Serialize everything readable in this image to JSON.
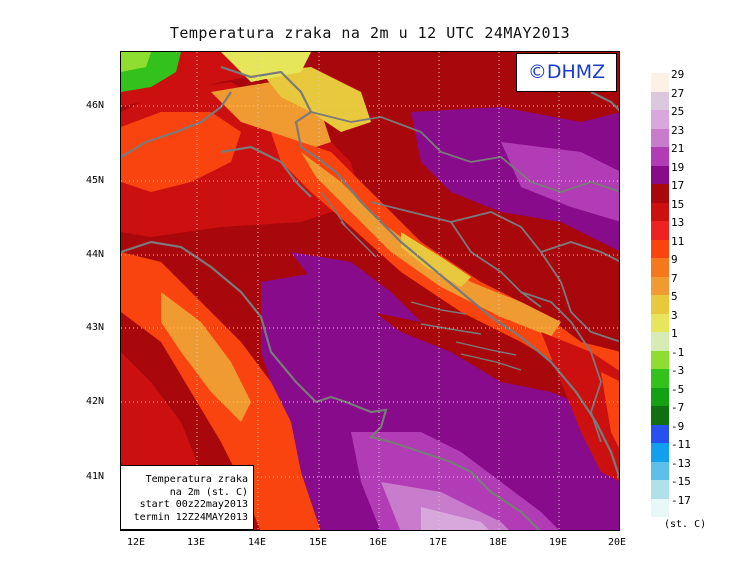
{
  "title": "Temperatura zraka na 2m u 12 UTC 24MAY2013",
  "logo": "©DHMZ",
  "infobox": {
    "line1": "Temperatura zraka",
    "line2": "na 2m (st. C)",
    "line3": "start 00z22may2013",
    "line4": "termin 12Z24MAY2013"
  },
  "lat_labels": [
    "46N",
    "45N",
    "44N",
    "43N",
    "42N",
    "41N"
  ],
  "lon_labels": [
    "12E",
    "13E",
    "14E",
    "15E",
    "16E",
    "17E",
    "18E",
    "19E",
    "20E"
  ],
  "legend": {
    "unit": "(st. C)",
    "entries": [
      {
        "label": "29",
        "color": "#fdf0e4"
      },
      {
        "label": "27",
        "color": "#dcc8de"
      },
      {
        "label": "25",
        "color": "#d8a8dc"
      },
      {
        "label": "23",
        "color": "#c77ccc"
      },
      {
        "label": "21",
        "color": "#b13cb5"
      },
      {
        "label": "19",
        "color": "#870b8a"
      },
      {
        "label": "17",
        "color": "#a8080c"
      },
      {
        "label": "15",
        "color": "#cc1010"
      },
      {
        "label": "13",
        "color": "#ee2222"
      },
      {
        "label": "11",
        "color": "#fa4410"
      },
      {
        "label": "9",
        "color": "#f6781c"
      },
      {
        "label": "7",
        "color": "#f09a32"
      },
      {
        "label": "5",
        "color": "#e8c83c"
      },
      {
        "label": "3",
        "color": "#e6e65a"
      },
      {
        "label": "1",
        "color": "#d6ecb4"
      },
      {
        "label": "-1",
        "color": "#8ede32"
      },
      {
        "label": "-3",
        "color": "#33c21c"
      },
      {
        "label": "-5",
        "color": "#14a014"
      },
      {
        "label": "-7",
        "color": "#107010"
      },
      {
        "label": "-9",
        "color": "#2850f0"
      },
      {
        "label": "-11",
        "color": "#12a0ee"
      },
      {
        "label": "-13",
        "color": "#5cc0ea"
      },
      {
        "label": "-15",
        "color": "#b0e0e8"
      },
      {
        "label": "-17",
        "color": "#e8f8f8"
      }
    ]
  }
}
